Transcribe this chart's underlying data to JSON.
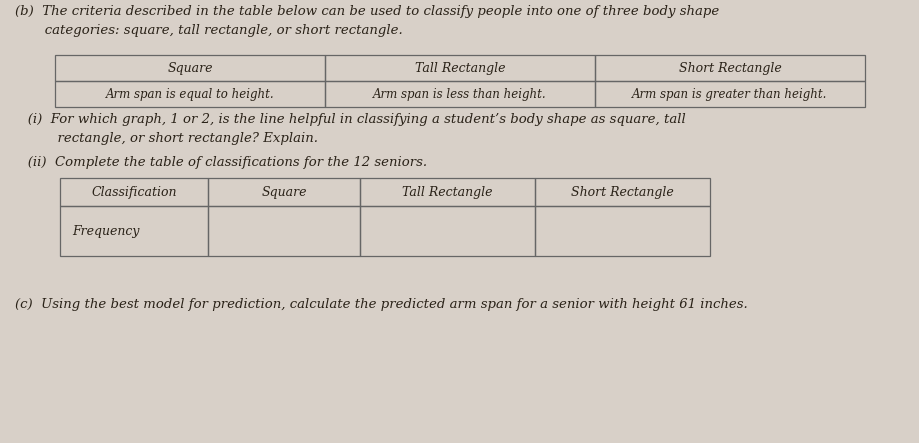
{
  "bg_color": "#d8d0c8",
  "part_b_intro": "(b)  The criteria described in the table below can be used to classify people into one of three body shape\n       categories: square, tall rectangle, or short rectangle.",
  "table1_headers": [
    "Square",
    "Tall Rectangle",
    "Short Rectangle"
  ],
  "table1_row": [
    "Arm span is equal to height.",
    "Arm span is less than height.",
    "Arm span is greater than height."
  ],
  "part_i_text": "   (i)  For which graph, 1 or 2, is the line helpful in classifying a student’s body shape as square, tall\n          rectangle, or short rectangle? Explain.",
  "part_ii_text": "   (ii)  Complete the table of classifications for the 12 seniors.",
  "table2_headers": [
    "Classification",
    "Square",
    "Tall Rectangle",
    "Short Rectangle"
  ],
  "table2_row": [
    "Frequency",
    "",
    "",
    ""
  ],
  "part_c_text": "(c)  Using the best model for prediction, calculate the predicted arm span for a senior with height 61 inches.",
  "font_size_body": 9.5,
  "font_size_table": 9.0,
  "text_color": "#2a2218"
}
